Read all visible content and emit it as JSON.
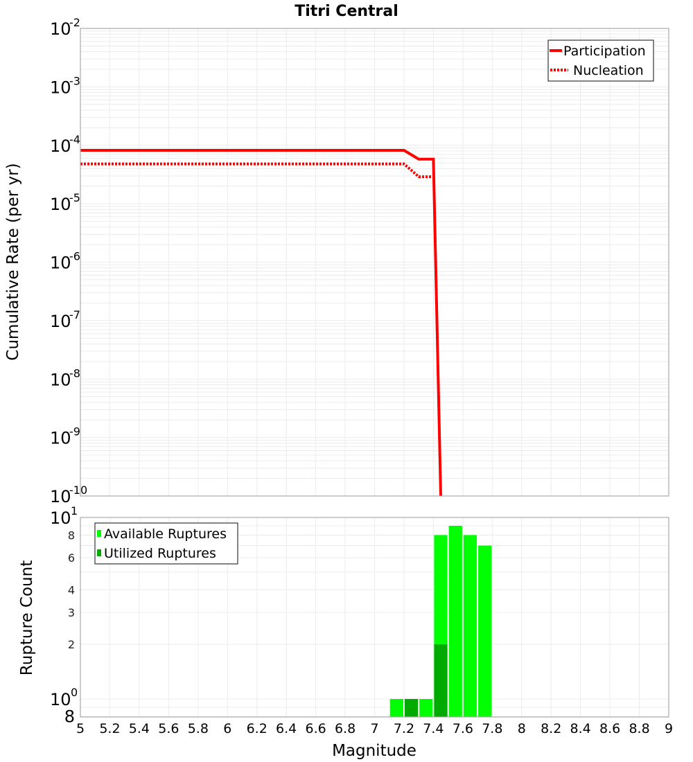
{
  "chart_data": [
    {
      "type": "line",
      "title": "Titri Central",
      "xlabel": "Magnitude",
      "ylabel": "Cumulative Rate (per yr)",
      "yscale": "log",
      "ylim": [
        1e-10,
        0.01
      ],
      "xlim": [
        5,
        9
      ],
      "grid": true,
      "legend_position": "upper right",
      "y_tick_labels": [
        {
          "base": "10",
          "exp": "-2"
        },
        {
          "base": "10",
          "exp": "-3"
        },
        {
          "base": "10",
          "exp": "-4"
        },
        {
          "base": "10",
          "exp": "-5"
        },
        {
          "base": "10",
          "exp": "-6"
        },
        {
          "base": "10",
          "exp": "-7"
        },
        {
          "base": "10",
          "exp": "-8"
        },
        {
          "base": "10",
          "exp": "-9"
        },
        {
          "base": "10",
          "exp": "-10"
        }
      ],
      "series": [
        {
          "name": "Participation",
          "style": "solid",
          "color": "#ff0000",
          "x": [
            5.0,
            7.2,
            7.3,
            7.4,
            7.45
          ],
          "y": [
            8.2e-05,
            8.2e-05,
            5.8e-05,
            5.8e-05,
            1e-10
          ]
        },
        {
          "name": "Nucleation",
          "style": "dotted",
          "color": "#ff0000",
          "x": [
            5.0,
            7.2,
            7.3,
            7.4
          ],
          "y": [
            4.8e-05,
            4.8e-05,
            2.9e-05,
            2.9e-05
          ]
        }
      ]
    },
    {
      "type": "bar",
      "xlabel": "Magnitude",
      "ylabel": "Rupture Count",
      "yscale": "log",
      "ylim": [
        0.8,
        10
      ],
      "xlim": [
        5,
        9
      ],
      "grid": true,
      "legend_position": "upper left",
      "y_tick_labels": [
        {
          "base": "10",
          "exp": "1"
        },
        {
          "label": "8"
        },
        {
          "label": "6"
        },
        {
          "label": "4"
        },
        {
          "label": "3"
        },
        {
          "label": "2"
        },
        {
          "base": "10",
          "exp": "0"
        },
        {
          "label": "8"
        }
      ],
      "categories": [
        7.15,
        7.25,
        7.35,
        7.45,
        7.55,
        7.65,
        7.75
      ],
      "series": [
        {
          "name": "Available Ruptures",
          "color": "#00ff00",
          "values": [
            1,
            1,
            1,
            8,
            9,
            8,
            7
          ]
        },
        {
          "name": "Utilized Ruptures",
          "color": "#00aa00",
          "values": [
            0,
            1,
            0,
            2,
            0,
            0,
            0
          ]
        }
      ]
    }
  ],
  "x_ticks": [
    "5",
    "5.2",
    "5.4",
    "5.6",
    "5.8",
    "6",
    "6.2",
    "6.4",
    "6.6",
    "6.8",
    "7",
    "7.2",
    "7.4",
    "7.6",
    "7.8",
    "8",
    "8.2",
    "8.4",
    "8.6",
    "8.8",
    "9"
  ],
  "labels": {
    "title": "Titri Central",
    "top_ylabel": "Cumulative Rate (per yr)",
    "bottom_ylabel": "Rupture Count",
    "xlabel": "Magnitude",
    "legend_top": [
      "Participation",
      "Nucleation"
    ],
    "legend_bottom": [
      "Available Ruptures",
      "Utilized Ruptures"
    ]
  }
}
